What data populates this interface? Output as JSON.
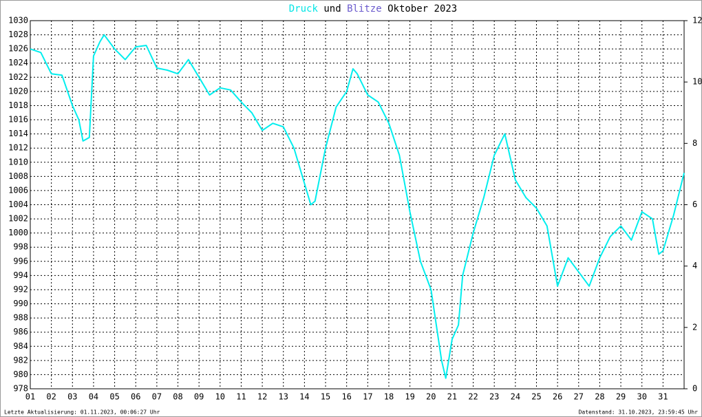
{
  "chart_data": {
    "type": "line",
    "title_segments": [
      {
        "text": "Druck",
        "color": "#00e5e5"
      },
      {
        "text": "und",
        "color": "#000000"
      },
      {
        "text": "Blitze",
        "color": "#6a5acd"
      },
      {
        "text": "Oktober 2023",
        "color": "#000000"
      }
    ],
    "x": [
      1,
      1.5,
      2,
      2.5,
      3,
      3.3,
      3.5,
      3.8,
      4,
      4.3,
      4.5,
      5,
      5.5,
      6,
      6.5,
      7,
      7.5,
      8,
      8.5,
      9,
      9.5,
      10,
      10.5,
      11,
      11.5,
      12,
      12.5,
      13,
      13.5,
      14,
      14.3,
      14.5,
      15,
      15.5,
      16,
      16.3,
      16.5,
      17,
      17.5,
      18,
      18.5,
      19,
      19.5,
      20,
      20.5,
      20.7,
      21,
      21.3,
      21.5,
      22,
      22.5,
      23,
      23.5,
      24,
      24.5,
      25,
      25.5,
      26,
      26.5,
      27,
      27.5,
      28,
      28.5,
      29,
      29.5,
      30,
      30.5,
      30.8,
      31,
      31.5,
      32
    ],
    "series": [
      {
        "name": "Druck",
        "color": "#00eeee",
        "values": [
          1026,
          1025.5,
          1022.5,
          1022.3,
          1018,
          1016,
          1013,
          1013.5,
          1025,
          1027,
          1028,
          1026,
          1024.5,
          1026.3,
          1026.5,
          1023.3,
          1023,
          1022.5,
          1024.5,
          1022,
          1019.5,
          1020.5,
          1020.2,
          1018.5,
          1017,
          1014.5,
          1015.5,
          1015,
          1012,
          1007,
          1004,
          1004.5,
          1012,
          1017.8,
          1020,
          1023.2,
          1022.5,
          1019.5,
          1018.5,
          1015.5,
          1011,
          1003,
          996,
          992,
          982,
          979.5,
          985,
          987,
          994,
          1000,
          1005,
          1011,
          1014,
          1007.5,
          1005,
          1003.5,
          1001,
          992.5,
          996.5,
          994.5,
          992.5,
          996.5,
          999.5,
          1001,
          999,
          1003,
          1002,
          997,
          997.5,
          1002.5,
          1008.5
        ]
      }
    ],
    "xlim": [
      1,
      32
    ],
    "xticks": [
      {
        "value": 1,
        "label": "01"
      },
      {
        "value": 2,
        "label": "02"
      },
      {
        "value": 3,
        "label": "03"
      },
      {
        "value": 4,
        "label": "04"
      },
      {
        "value": 5,
        "label": "05"
      },
      {
        "value": 6,
        "label": "06"
      },
      {
        "value": 7,
        "label": "07"
      },
      {
        "value": 8,
        "label": "08"
      },
      {
        "value": 9,
        "label": "09"
      },
      10,
      11,
      12,
      13,
      14,
      15,
      16,
      17,
      18,
      19,
      20,
      21,
      22,
      23,
      24,
      25,
      26,
      27,
      28,
      29,
      30,
      31
    ],
    "ylim": [
      978,
      1030
    ],
    "yticks": [
      978,
      980,
      982,
      984,
      986,
      988,
      990,
      992,
      994,
      996,
      998,
      1000,
      1002,
      1004,
      1006,
      1008,
      1010,
      1012,
      1014,
      1016,
      1018,
      1020,
      1022,
      1024,
      1026,
      1028,
      1030
    ],
    "y2lim": [
      0,
      12
    ],
    "y2ticks": [
      0,
      2,
      4,
      6,
      8,
      10,
      12
    ],
    "grid": true,
    "footer_left": "Letzte Aktualisierung: 01.11.2023, 00:06:27 Uhr",
    "footer_right": "Datenstand: 31.10.2023, 23:59:45 Uhr"
  }
}
